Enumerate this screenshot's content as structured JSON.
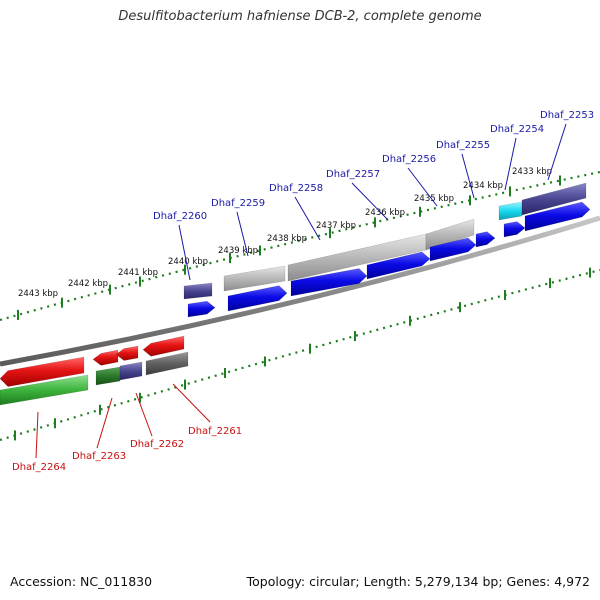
{
  "title": "Desulfitobacterium hafniense DCB-2, complete genome",
  "footer": {
    "accession": "Accession: NC_011830",
    "topology": "Topology: circular; Length: 5,279,134 bp; Genes: 4,972"
  },
  "colors": {
    "forward_label": "#1a1aa6",
    "reverse_label": "#c81010",
    "tick": "#1e7d1e",
    "backbone": "#888888",
    "cds_forward": "#0a0ae6",
    "cds_reverse": "#e61414"
  },
  "kbp_labels": [
    {
      "id": "2433",
      "text": "2433 kbp"
    },
    {
      "id": "2434",
      "text": "2434 kbp"
    },
    {
      "id": "2435",
      "text": "2435 kbp"
    },
    {
      "id": "2436",
      "text": "2436 kbp"
    },
    {
      "id": "2437",
      "text": "2437 kbp"
    },
    {
      "id": "2438",
      "text": "2438 kbp"
    },
    {
      "id": "2439",
      "text": "2439 kbp"
    },
    {
      "id": "2440",
      "text": "2440 kbp"
    },
    {
      "id": "2441",
      "text": "2441 kbp"
    },
    {
      "id": "2442",
      "text": "2442 kbp"
    },
    {
      "id": "2443",
      "text": "2443 kbp"
    }
  ],
  "forward_genes": [
    {
      "id": "2253",
      "label": "Dhaf_2253"
    },
    {
      "id": "2254",
      "label": "Dhaf_2254"
    },
    {
      "id": "2255",
      "label": "Dhaf_2255"
    },
    {
      "id": "2256",
      "label": "Dhaf_2256"
    },
    {
      "id": "2257",
      "label": "Dhaf_2257"
    },
    {
      "id": "2258",
      "label": "Dhaf_2258"
    },
    {
      "id": "2259",
      "label": "Dhaf_2259"
    },
    {
      "id": "2260",
      "label": "Dhaf_2260"
    }
  ],
  "reverse_genes": [
    {
      "id": "2261",
      "label": "Dhaf_2261"
    },
    {
      "id": "2262",
      "label": "Dhaf_2262"
    },
    {
      "id": "2263",
      "label": "Dhaf_2263"
    },
    {
      "id": "2264",
      "label": "Dhaf_2264"
    }
  ]
}
